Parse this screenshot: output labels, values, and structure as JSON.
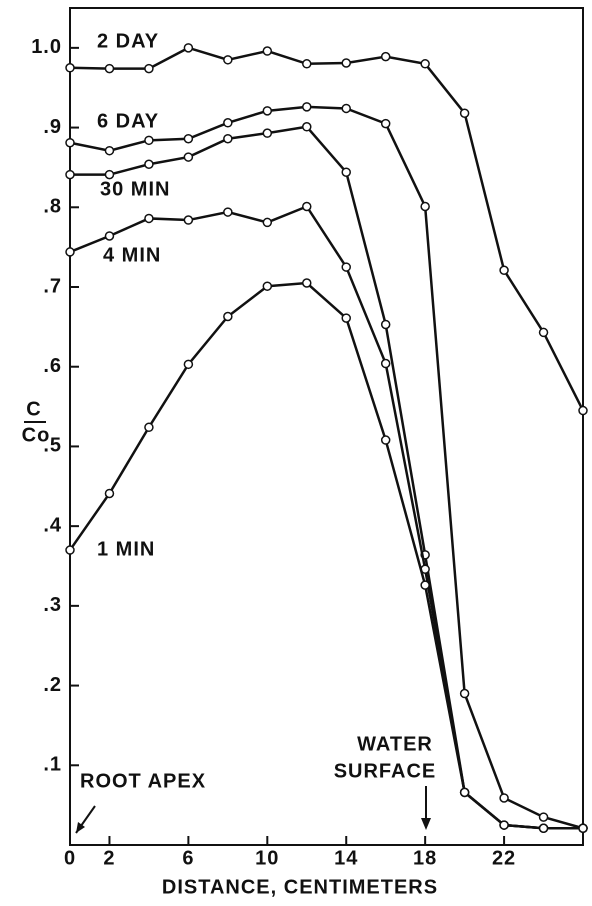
{
  "chart_data": {
    "type": "line",
    "xlabel": "DISTANCE, CENTIMETERS",
    "ylabel": {
      "numerator": "C",
      "denominator": "Co"
    },
    "x": [
      0,
      2,
      4,
      6,
      8,
      10,
      12,
      14,
      16,
      18,
      20,
      22,
      24,
      26
    ],
    "xlim": [
      0,
      26
    ],
    "xticks": [
      0,
      2,
      6,
      10,
      14,
      18,
      22
    ],
    "ylim": [
      0,
      1.05
    ],
    "yticks": [
      {
        "value": 0.1,
        "label": ".1"
      },
      {
        "value": 0.2,
        "label": ".2"
      },
      {
        "value": 0.3,
        "label": ".3"
      },
      {
        "value": 0.4,
        "label": ".4"
      },
      {
        "value": 0.5,
        "label": ".5"
      },
      {
        "value": 0.6,
        "label": ".6"
      },
      {
        "value": 0.7,
        "label": ".7"
      },
      {
        "value": 0.8,
        "label": ".8"
      },
      {
        "value": 0.9,
        "label": ".9"
      },
      {
        "value": 1.0,
        "label": "1.0"
      }
    ],
    "color": "#111111",
    "series": [
      {
        "name": "2 DAY",
        "values": [
          0.975,
          0.974,
          0.974,
          1.0,
          0.985,
          0.996,
          0.98,
          0.981,
          0.989,
          0.98,
          0.918,
          0.721,
          0.643,
          0.545
        ]
      },
      {
        "name": "6 DAY",
        "values": [
          0.881,
          0.871,
          0.884,
          0.886,
          0.906,
          0.921,
          0.926,
          0.924,
          0.905,
          0.801,
          0.19,
          0.059,
          0.035,
          0.021
        ]
      },
      {
        "name": "30 MIN",
        "values": [
          0.841,
          0.841,
          0.854,
          0.863,
          0.886,
          0.893,
          0.901,
          0.844,
          0.653,
          0.364,
          0.066,
          0.025,
          0.021,
          0.021
        ]
      },
      {
        "name": "4 MIN",
        "values": [
          0.744,
          0.764,
          0.786,
          0.784,
          0.794,
          0.781,
          0.801,
          0.725,
          0.604,
          0.346,
          0.066,
          0.025,
          0.021,
          0.021
        ]
      },
      {
        "name": "1 MIN",
        "values": [
          0.37,
          0.441,
          0.524,
          0.603,
          0.663,
          0.701,
          0.705,
          0.661,
          0.508,
          0.326,
          0.066,
          0.025,
          0.021,
          0.021
        ]
      }
    ],
    "annotations": [
      {
        "text": "ROOT APEX"
      },
      {
        "lines": [
          "WATER",
          "SURFACE"
        ]
      }
    ]
  }
}
